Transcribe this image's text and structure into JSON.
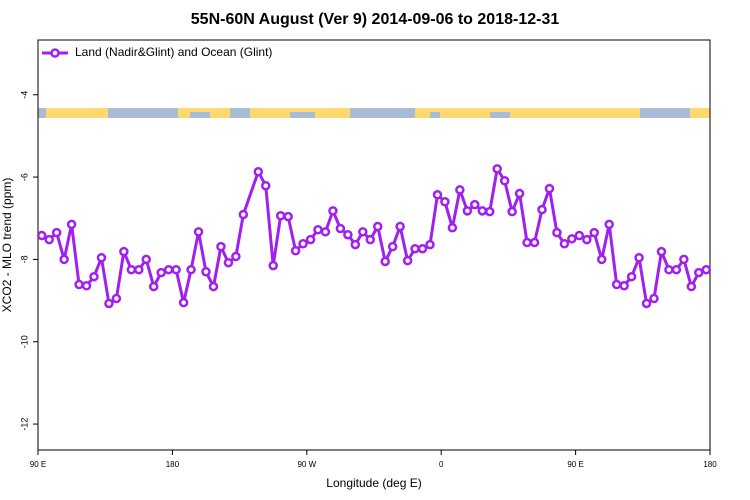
{
  "chart_data": {
    "type": "line",
    "title": "55N-60N August (Ver 9)   2014-09-06 to 2018-12-31",
    "x_label": "Longitude (deg E)",
    "y_label": "XCO2 - MLO trend (ppm)",
    "xlim": [
      90,
      540
    ],
    "ylim": [
      -12.63,
      -2.67
    ],
    "xticks": [
      {
        "value": 90,
        "label": "90 E"
      },
      180,
      {
        "value": 270,
        "label": "90 W"
      },
      {
        "value": 360,
        "label": "0"
      },
      {
        "value": 450,
        "label": "90 E"
      },
      {
        "value": 540,
        "label": "180"
      }
    ],
    "yticks": [
      -12,
      -10,
      -8,
      -6,
      -4
    ],
    "legend": "upper left",
    "series": [
      {
        "name": "Land (Nadir&Glint) and Ocean (Glint)",
        "color": "#a020f0",
        "x": [
          92.5,
          97.5,
          102.5,
          107.5,
          112.5,
          117.5,
          122.5,
          127.5,
          132.5,
          137.5,
          142.5,
          147.5,
          152.5,
          157.5,
          162.5,
          167.5,
          172.5,
          177.5,
          182.5,
          187.5,
          192.5,
          197.5,
          202.5,
          207.5,
          212.5,
          217.5,
          222.5,
          227.5,
          237.5,
          242.5,
          247.5,
          252.5,
          257.5,
          262.5,
          267.5,
          272.5,
          277.5,
          282.5,
          287.5,
          292.5,
          297.5,
          302.5,
          307.5,
          312.5,
          317.5,
          322.5,
          327.5,
          332.5,
          337.5,
          342.5,
          347.5,
          352.5,
          357.5,
          362.5,
          367.5,
          372.5,
          377.5,
          382.5,
          387.5,
          392.5,
          397.5,
          402.5,
          407.5,
          412.5,
          417.5,
          422.5,
          427.5,
          432.5,
          437.5,
          442.5,
          447.5,
          452.5,
          457.5,
          462.5,
          467.5,
          472.5,
          477.5,
          482.5,
          487.5,
          492.5,
          497.5,
          502.5,
          507.5,
          512.5,
          517.5,
          522.5,
          527.5,
          532.5,
          537.5
        ],
        "values": [
          -7.42,
          -7.52,
          -7.35,
          -8.0,
          -7.15,
          -8.61,
          -8.64,
          -8.42,
          -7.96,
          -9.07,
          -8.95,
          -7.81,
          -8.25,
          -8.25,
          -8.0,
          -8.66,
          -8.32,
          -8.25,
          -8.25,
          -9.05,
          -8.25,
          -7.33,
          -8.3,
          -8.66,
          -7.69,
          -8.08,
          -7.93,
          -6.91,
          -5.87,
          -6.21,
          -8.15,
          -6.94,
          -6.96,
          -7.79,
          -7.62,
          -7.52,
          -7.28,
          -7.33,
          -6.82,
          -7.25,
          -7.4,
          -7.64,
          -7.33,
          -7.52,
          -7.2,
          -8.05,
          -7.69,
          -7.2,
          -8.03,
          -7.74,
          -7.74,
          -7.64,
          -6.43,
          -6.6,
          -7.23,
          -6.31,
          -6.82,
          -6.67,
          -6.82,
          -6.84,
          -5.8,
          -6.09,
          -6.84,
          -6.4,
          -7.59,
          -7.59,
          -6.79,
          -6.28,
          -7.35,
          -7.62,
          -7.5,
          -7.42,
          -7.52,
          -7.35,
          -8.0,
          -7.15,
          -8.61,
          -8.64,
          -8.42,
          -7.96,
          -9.07,
          -8.95,
          -7.81,
          -8.25,
          -8.25,
          -8.0,
          -8.66,
          -8.32,
          -8.25
        ]
      }
    ]
  }
}
